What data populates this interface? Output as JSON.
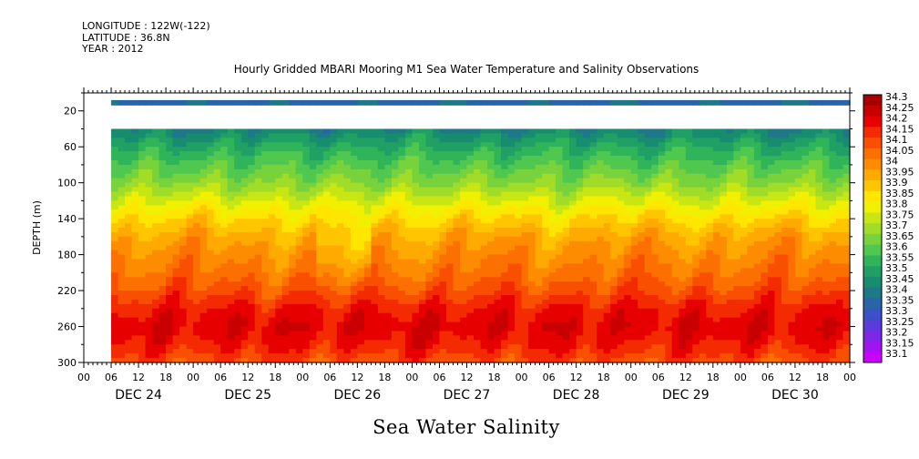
{
  "header": {
    "longitude": "LONGITUDE : 122W(-122)",
    "latitude": "LATITUDE : 36.8N",
    "year": "YEAR : 2012"
  },
  "chart_data": {
    "type": "heatmap",
    "title": "Hourly Gridded MBARI Mooring M1 Sea Water Temperature and Salinity Observations",
    "variable_label": "Sea Water Salinity",
    "ylabel": "DEPTH (m)",
    "ylim": [
      0,
      300
    ],
    "y_inverted": true,
    "y_tick_labels": [
      "20",
      "60",
      "100",
      "140",
      "180",
      "220",
      "260",
      "300"
    ],
    "y_tick_values": [
      20,
      60,
      100,
      140,
      180,
      220,
      260,
      300
    ],
    "x_range_hours": [
      0,
      168
    ],
    "x_hour_labels": [
      "00",
      "06",
      "12",
      "18",
      "00",
      "06",
      "12",
      "18",
      "00",
      "06",
      "12",
      "18",
      "00",
      "06",
      "12",
      "18",
      "00",
      "06",
      "12",
      "18",
      "00",
      "06",
      "12",
      "18",
      "00",
      "06",
      "12",
      "18",
      "00"
    ],
    "day_labels": [
      "DEC 24",
      "DEC 25",
      "DEC 26",
      "DEC 27",
      "DEC 28",
      "DEC 29",
      "DEC 30"
    ],
    "data_start_hour": 6,
    "depths_m": [
      10,
      40,
      60,
      80,
      100,
      120,
      140,
      160,
      180,
      200,
      220,
      240,
      260,
      280,
      300
    ],
    "colorbar": {
      "levels": [
        "34.3",
        "34.25",
        "34.2",
        "34.15",
        "34.1",
        "34.05",
        "34",
        "33.95",
        "33.9",
        "33.85",
        "33.8",
        "33.75",
        "33.7",
        "33.65",
        "33.6",
        "33.55",
        "33.5",
        "33.45",
        "33.4",
        "33.35",
        "33.3",
        "33.25",
        "33.2",
        "33.15",
        "33.1"
      ],
      "colors": [
        "#a80000",
        "#c80000",
        "#e60000",
        "#f42a00",
        "#f85000",
        "#fb7000",
        "#fd8c00",
        "#feaa00",
        "#ffc600",
        "#ffe600",
        "#f0f000",
        "#c8e614",
        "#a0dc28",
        "#78d23c",
        "#50c850",
        "#30b45a",
        "#20a064",
        "#188c6e",
        "#1e7888",
        "#2864a8",
        "#3c50c8",
        "#5a3cdc",
        "#7c28e6",
        "#a014f0",
        "#c800ff"
      ]
    },
    "salinity_profile": [
      {
        "depth": 10,
        "value": 33.38
      },
      {
        "depth": 40,
        "value": 33.45
      },
      {
        "depth": 60,
        "value": 33.55
      },
      {
        "depth": 80,
        "value": 33.63
      },
      {
        "depth": 100,
        "value": 33.7
      },
      {
        "depth": 120,
        "value": 33.8
      },
      {
        "depth": 140,
        "value": 33.9
      },
      {
        "depth": 160,
        "value": 33.98
      },
      {
        "depth": 180,
        "value": 34.03
      },
      {
        "depth": 200,
        "value": 34.07
      },
      {
        "depth": 220,
        "value": 34.13
      },
      {
        "depth": 240,
        "value": 34.2
      },
      {
        "depth": 260,
        "value": 34.24
      },
      {
        "depth": 280,
        "value": 34.2
      },
      {
        "depth": 300,
        "value": 34.13
      }
    ]
  }
}
